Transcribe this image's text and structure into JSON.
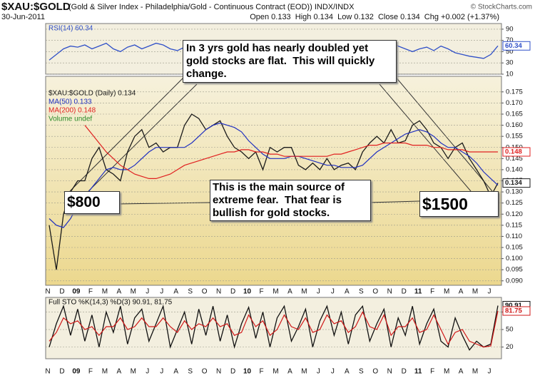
{
  "header": {
    "symbol": "$XAU:$GOLD",
    "description": "(Gold & Silver Index - Philadelphia/Gold - Continuous Contract (EOD)) INDX/INDX",
    "date": "30-Jun-2011",
    "quote": "Open 0.133  High 0.134  Low 0.132  Close 0.134  Chg +0.002 (+1.37%)",
    "credit": "© StockCharts.com"
  },
  "chart_data": [
    {
      "type": "line",
      "ylim": [
        10,
        100
      ],
      "yticks": [
        10,
        30,
        50,
        70,
        90
      ],
      "grid": true,
      "series": [
        {
          "name": "RSI(14) 60.34",
          "color": "#3050c8",
          "end_label": "60.34",
          "values": [
            35,
            45,
            55,
            60,
            58,
            62,
            55,
            60,
            65,
            55,
            50,
            58,
            62,
            55,
            60,
            65,
            62,
            55,
            52,
            58,
            60,
            65,
            62,
            55,
            50,
            45,
            48,
            55,
            58,
            52,
            50,
            55,
            52,
            48,
            50,
            55,
            52,
            50,
            58,
            62,
            65,
            60,
            62,
            66,
            63,
            58,
            62,
            68,
            65,
            60,
            55,
            50,
            55,
            58,
            52,
            60,
            55,
            48,
            45,
            42,
            40,
            38,
            45,
            60.34
          ]
        }
      ]
    },
    {
      "type": "line",
      "ylim": [
        0.088,
        0.182
      ],
      "grid": true,
      "yticks": [
        {
          "value": 0.09,
          "label": "0.090"
        },
        0.095,
        {
          "value": 0.1,
          "label": "0.100"
        },
        0.105,
        {
          "value": 0.11,
          "label": "0.110"
        },
        0.115,
        {
          "value": 0.12,
          "label": "0.120"
        },
        0.125,
        {
          "value": 0.13,
          "label": "0.130"
        },
        0.135,
        {
          "value": 0.14,
          "label": "0.140"
        },
        0.145,
        {
          "value": 0.15,
          "label": "0.150"
        },
        0.155,
        {
          "value": 0.16,
          "label": "0.160"
        },
        0.165,
        {
          "value": 0.17,
          "label": "0.170"
        },
        0.175
      ],
      "categories": [
        "N",
        null,
        "D",
        null,
        "09",
        null,
        "F",
        null,
        "M",
        null,
        "A",
        null,
        "M",
        null,
        "J",
        null,
        "J",
        null,
        "A",
        null,
        "S",
        null,
        "O",
        null,
        "N",
        null,
        "D",
        null,
        "10",
        null,
        "F",
        null,
        "M",
        null,
        "A",
        null,
        "M",
        null,
        "J",
        null,
        "J",
        null,
        "A",
        null,
        "S",
        null,
        "O",
        null,
        "N",
        null,
        "D",
        null,
        "11",
        null,
        "F",
        null,
        "M",
        null,
        "A",
        null,
        "M",
        null,
        "J",
        null
      ],
      "series": [
        {
          "name": "$XAU:$GOLD (Daily) 0.134",
          "color": "#1a1a1a",
          "end_label": "0.134",
          "values": [
            0.115,
            0.095,
            0.12,
            0.13,
            0.135,
            0.135,
            0.145,
            0.15,
            0.14,
            0.138,
            0.135,
            0.148,
            0.155,
            0.158,
            0.15,
            0.152,
            0.148,
            0.15,
            0.15,
            0.16,
            0.165,
            0.163,
            0.158,
            0.16,
            0.162,
            0.155,
            0.15,
            0.148,
            0.145,
            0.148,
            0.14,
            0.15,
            0.148,
            0.15,
            0.15,
            0.142,
            0.14,
            0.143,
            0.14,
            0.145,
            0.14,
            0.142,
            0.143,
            0.14,
            0.148,
            0.152,
            0.155,
            0.152,
            0.158,
            0.152,
            0.153,
            0.16,
            0.162,
            0.158,
            0.152,
            0.15,
            0.145,
            0.15,
            0.152,
            0.145,
            0.14,
            0.135,
            0.128,
            0.134
          ]
        },
        {
          "name": "MA(50) 0.133",
          "color": "#2030c0",
          "values": [
            0.118,
            0.115,
            0.114,
            0.118,
            0.124,
            0.128,
            0.132,
            0.136,
            0.14,
            0.141,
            0.14,
            0.14,
            0.142,
            0.145,
            0.148,
            0.15,
            0.15,
            0.15,
            0.15,
            0.15,
            0.152,
            0.155,
            0.158,
            0.16,
            0.161,
            0.16,
            0.159,
            0.157,
            0.153,
            0.15,
            0.147,
            0.145,
            0.145,
            0.145,
            0.146,
            0.146,
            0.145,
            0.144,
            0.143,
            0.142,
            0.142,
            0.141,
            0.141,
            0.141,
            0.142,
            0.145,
            0.148,
            0.15,
            0.152,
            0.154,
            0.156,
            0.157,
            0.158,
            0.157,
            0.155,
            0.152,
            0.15,
            0.15,
            0.148,
            0.146,
            0.143,
            0.139,
            0.136,
            0.133
          ]
        },
        {
          "name": "MA(200) 0.148",
          "color": "#e02020",
          "end_label": "0.148",
          "values": [
            null,
            null,
            null,
            null,
            null,
            0.16,
            0.156,
            0.152,
            0.148,
            0.145,
            0.142,
            0.14,
            0.138,
            0.137,
            0.136,
            0.136,
            0.137,
            0.138,
            0.14,
            0.142,
            0.143,
            0.144,
            0.145,
            0.146,
            0.147,
            0.148,
            0.148,
            0.149,
            0.149,
            0.148,
            0.148,
            0.147,
            0.147,
            0.146,
            0.146,
            0.146,
            0.146,
            0.146,
            0.146,
            0.146,
            0.147,
            0.147,
            0.148,
            0.149,
            0.15,
            0.151,
            0.151,
            0.152,
            0.152,
            0.152,
            0.152,
            0.151,
            0.151,
            0.151,
            0.15,
            0.15,
            0.149,
            0.149,
            0.149,
            0.148,
            0.148,
            0.148,
            0.148,
            0.148
          ]
        }
      ],
      "volume_label": "Volume undef",
      "volume_color": "#2a8a2a",
      "annotations": [
        "In 3 yrs gold has nearly doubled yet gold stocks are flat.  This will quickly change.",
        "This is the main source of extreme fear.  That fear is bullish for gold stocks.",
        "$800",
        "$1500"
      ]
    },
    {
      "type": "line",
      "ylim": [
        0,
        105
      ],
      "yticks": [
        20,
        50,
        80
      ],
      "grid": true,
      "title": "Full STO %K(14,3) %D(3) 90.91, 81.75",
      "categories": [
        "N",
        null,
        "D",
        null,
        "09",
        null,
        "F",
        null,
        "M",
        null,
        "A",
        null,
        "M",
        null,
        "J",
        null,
        "J",
        null,
        "A",
        null,
        "S",
        null,
        "O",
        null,
        "N",
        null,
        "D",
        null,
        "10",
        null,
        "F",
        null,
        "M",
        null,
        "A",
        null,
        "M",
        null,
        "J",
        null,
        "J",
        null,
        "A",
        null,
        "S",
        null,
        "O",
        null,
        "N",
        null,
        "D",
        null,
        "11",
        null,
        "F",
        null,
        "M",
        null,
        "A",
        null,
        "M",
        null,
        "J",
        null
      ],
      "series": [
        {
          "color": "#111111",
          "end_label": "90.91",
          "values": [
            20,
            60,
            90,
            40,
            85,
            30,
            75,
            20,
            80,
            45,
            90,
            25,
            70,
            85,
            30,
            60,
            90,
            20,
            50,
            80,
            25,
            85,
            40,
            90,
            30,
            75,
            20,
            60,
            88,
            35,
            80,
            20,
            70,
            90,
            30,
            55,
            85,
            20,
            65,
            90,
            40,
            80,
            25,
            75,
            90,
            30,
            60,
            85,
            20,
            70,
            40,
            90,
            25,
            60,
            85,
            30,
            20,
            70,
            40,
            15,
            30,
            20,
            25,
            90.91
          ]
        },
        {
          "color": "#d01818",
          "end_label": "81.75",
          "values": [
            30,
            45,
            70,
            60,
            65,
            50,
            55,
            40,
            55,
            55,
            70,
            50,
            55,
            70,
            55,
            55,
            70,
            55,
            45,
            65,
            50,
            60,
            55,
            70,
            55,
            60,
            40,
            45,
            75,
            55,
            65,
            40,
            50,
            75,
            55,
            50,
            70,
            45,
            50,
            75,
            60,
            65,
            45,
            55,
            80,
            55,
            50,
            75,
            40,
            55,
            55,
            70,
            45,
            50,
            75,
            50,
            25,
            45,
            50,
            30,
            25,
            20,
            22,
            81.75
          ]
        }
      ]
    }
  ]
}
